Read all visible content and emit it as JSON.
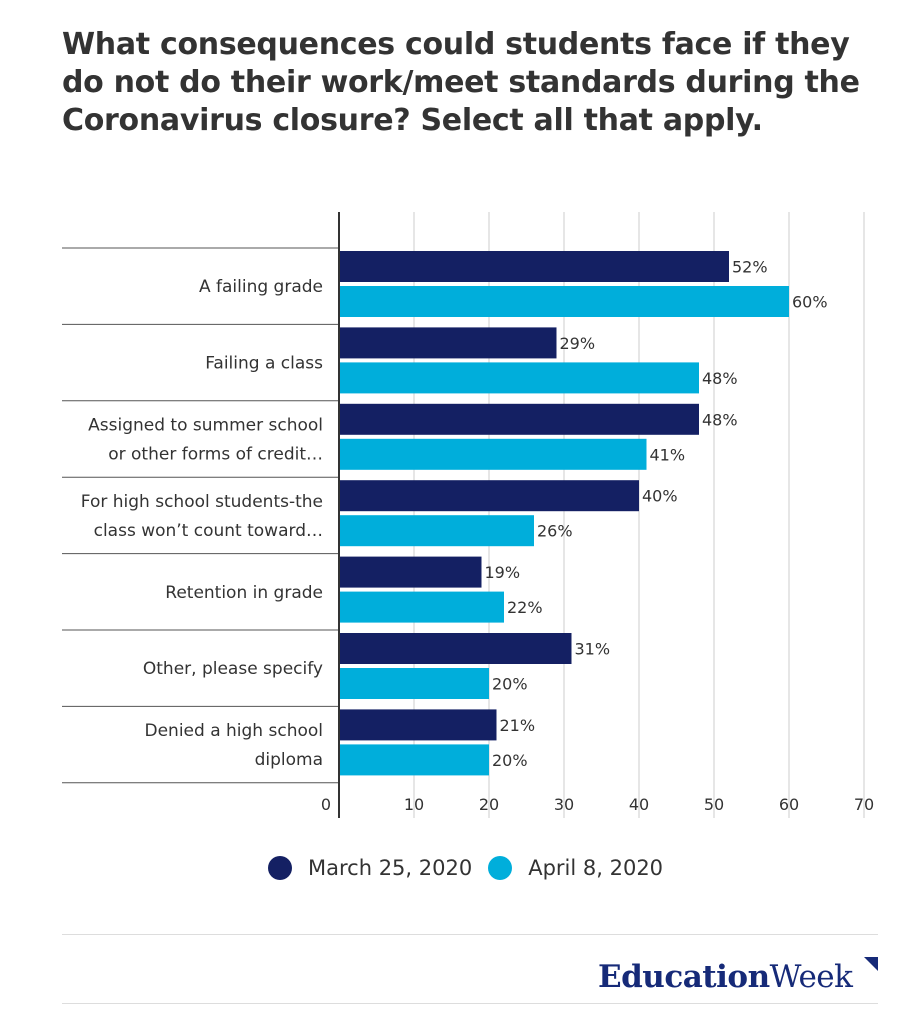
{
  "title": "What consequences could students face if they do not do their work/meet standards during the Coronavirus closure? Select all that apply.",
  "colors": {
    "series1": "#142063",
    "series2": "#00aedb",
    "grid": "#cccccc",
    "axis": "#333333",
    "brand": "#162a78"
  },
  "chart_data": {
    "type": "bar",
    "orientation": "horizontal",
    "categories": [
      [
        "A failing grade"
      ],
      [
        "Failing a class"
      ],
      [
        "Assigned to summer school",
        "or other forms of credit…"
      ],
      [
        "For high school students-the",
        "class won’t count toward…"
      ],
      [
        "Retention in grade"
      ],
      [
        "Other, please specify"
      ],
      [
        "Denied a high school",
        "diploma"
      ]
    ],
    "series": [
      {
        "name": "March 25, 2020",
        "values": [
          52,
          29,
          48,
          40,
          19,
          31,
          21
        ],
        "labels": [
          "52%",
          "29%",
          "48%",
          "40%",
          "19%",
          "31%",
          "21%"
        ]
      },
      {
        "name": "April 8, 2020",
        "values": [
          60,
          48,
          41,
          26,
          22,
          20,
          20
        ],
        "labels": [
          "60%",
          "48%",
          "41%",
          "26%",
          "22%",
          "20%",
          "20%"
        ]
      }
    ],
    "xlim": [
      0,
      70
    ],
    "xticks": [
      "0",
      "10",
      "20",
      "30",
      "40",
      "50",
      "60",
      "70"
    ],
    "grid": true,
    "legend": "bottom"
  },
  "legend": {
    "items": [
      "March 25, 2020",
      "April 8, 2020"
    ]
  },
  "brand": {
    "part1": "Education",
    "part2": "Week"
  }
}
